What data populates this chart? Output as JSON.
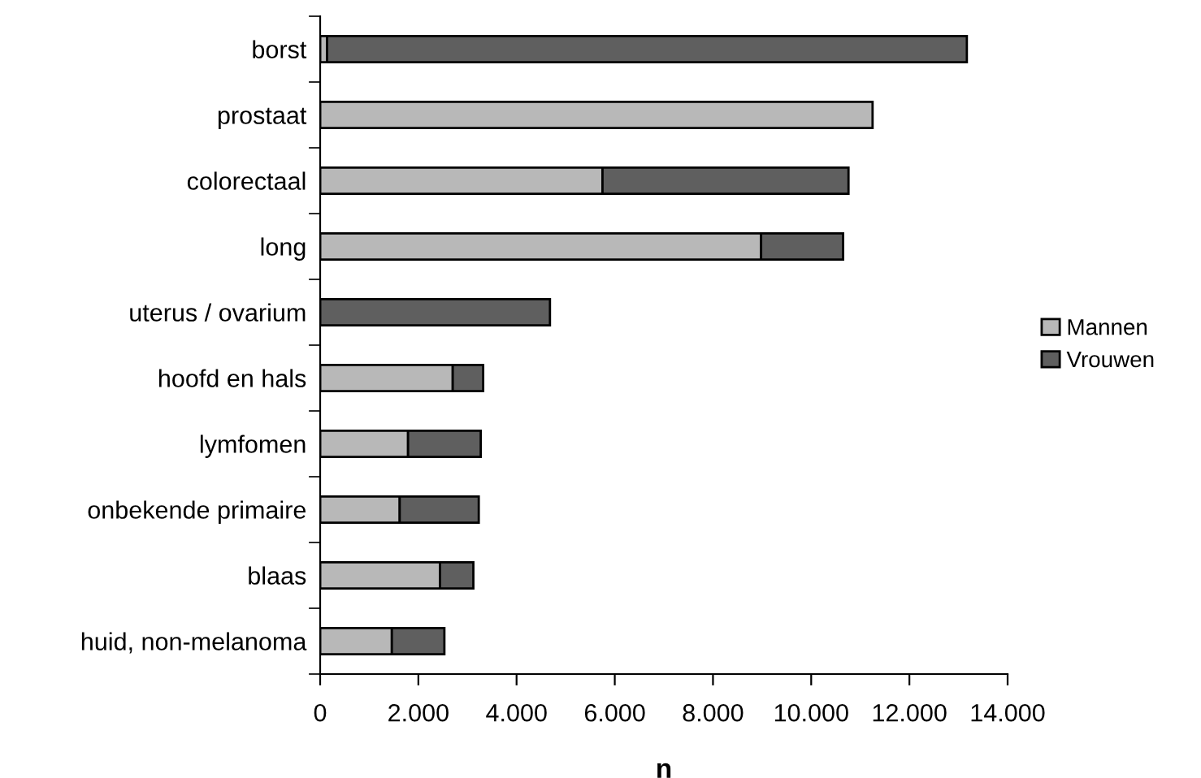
{
  "chart_data": {
    "type": "bar",
    "orientation": "horizontal",
    "stacked": true,
    "categories": [
      "borst",
      "prostaat",
      "colorectaal",
      "long",
      "uterus / ovarium",
      "hoofd en hals",
      "lymfomen",
      "onbekende primaire",
      "blaas",
      "huid, non-melanoma"
    ],
    "series": [
      {
        "name": "Mannen",
        "color": "#b8b8b8",
        "values": [
          140,
          11250,
          5750,
          8980,
          null,
          2700,
          1790,
          1620,
          2440,
          1460
        ]
      },
      {
        "name": "Vrouwen",
        "color": "#5f5f5f",
        "values": [
          13030,
          null,
          5010,
          1670,
          4680,
          620,
          1480,
          1610,
          680,
          1070
        ]
      }
    ],
    "xlabel": "n",
    "xlim": [
      0,
      14000
    ],
    "xticks": [
      {
        "value": 0,
        "label": "0"
      },
      {
        "value": 2000,
        "label": "2.000"
      },
      {
        "value": 4000,
        "label": "4.000"
      },
      {
        "value": 6000,
        "label": "6.000"
      },
      {
        "value": 8000,
        "label": "8.000"
      },
      {
        "value": 10000,
        "label": "10.000"
      },
      {
        "value": 12000,
        "label": "12.000"
      },
      {
        "value": 14000,
        "label": "14.000"
      }
    ],
    "legend": "right",
    "grid": false
  }
}
